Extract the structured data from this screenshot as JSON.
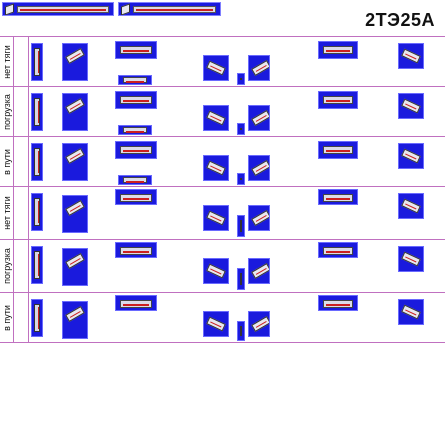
{
  "title": "2ТЭ25А",
  "rows": [
    {
      "id": "r1",
      "label": "нет тяги",
      "flip": false
    },
    {
      "id": "r2",
      "label": "погрузка",
      "flip": false
    },
    {
      "id": "r3",
      "label": "в пути",
      "flip": false
    },
    {
      "id": "r4",
      "label": "нет тяги",
      "flip": false
    },
    {
      "id": "r5",
      "label": "погрузка",
      "flip": false
    },
    {
      "id": "r6",
      "label": "в пути",
      "flip": false
    }
  ],
  "colors": {
    "tile_bg": "#1a1add",
    "grid_line": "#c070c0",
    "car_body": "#dcdce8",
    "car_stripe": "#cc2020"
  },
  "icons": {
    "tile": "locomotive-sprite-icon",
    "topbar": "locomotive-preview-icon"
  }
}
